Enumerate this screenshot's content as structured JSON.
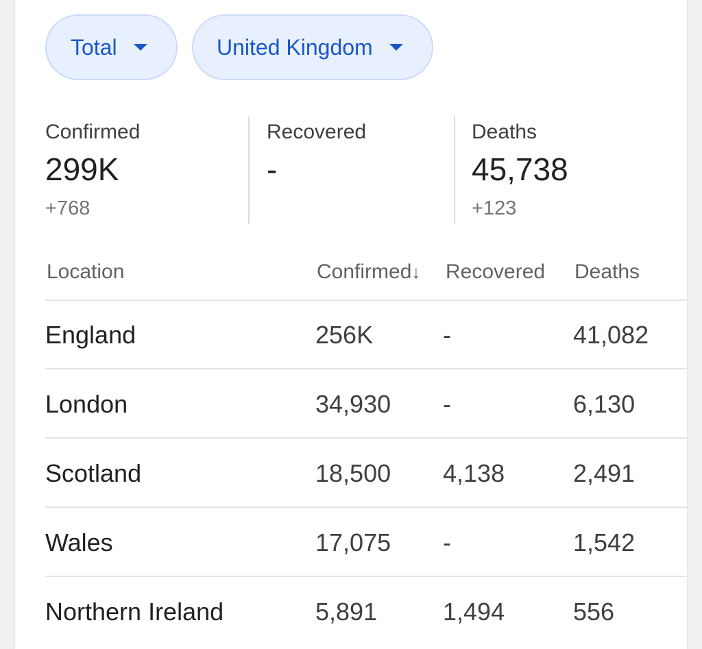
{
  "filters": {
    "metric_label": "Total",
    "region_label": "United Kingdom"
  },
  "summary": {
    "confirmed": {
      "label": "Confirmed",
      "value": "299K",
      "delta": "+768"
    },
    "recovered": {
      "label": "Recovered",
      "value": "-",
      "delta": ""
    },
    "deaths": {
      "label": "Deaths",
      "value": "45,738",
      "delta": "+123"
    }
  },
  "table": {
    "headers": {
      "location": "Location",
      "confirmed": "Confirmed",
      "confirmed_sort_arrow": "↓",
      "recovered": "Recovered",
      "deaths": "Deaths"
    },
    "rows": [
      {
        "location": "England",
        "confirmed": "256K",
        "recovered": "-",
        "deaths": "41,082"
      },
      {
        "location": "London",
        "confirmed": "34,930",
        "recovered": "-",
        "deaths": "6,130"
      },
      {
        "location": "Scotland",
        "confirmed": "18,500",
        "recovered": "4,138",
        "deaths": "2,491"
      },
      {
        "location": "Wales",
        "confirmed": "17,075",
        "recovered": "-",
        "deaths": "1,542"
      },
      {
        "location": "Northern Ireland",
        "confirmed": "5,891",
        "recovered": "1,494",
        "deaths": "556"
      }
    ]
  }
}
